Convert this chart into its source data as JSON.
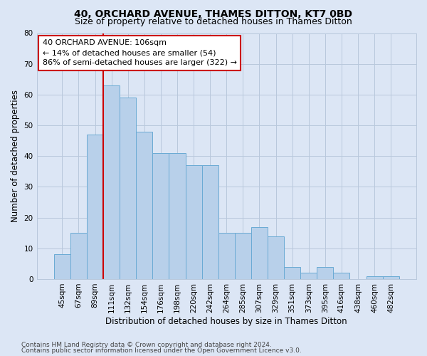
{
  "title": "40, ORCHARD AVENUE, THAMES DITTON, KT7 0BD",
  "subtitle": "Size of property relative to detached houses in Thames Ditton",
  "xlabel": "Distribution of detached houses by size in Thames Ditton",
  "ylabel": "Number of detached properties",
  "bar_labels": [
    "45sqm",
    "67sqm",
    "89sqm",
    "111sqm",
    "132sqm",
    "154sqm",
    "176sqm",
    "198sqm",
    "220sqm",
    "242sqm",
    "264sqm",
    "285sqm",
    "307sqm",
    "329sqm",
    "351sqm",
    "373sqm",
    "395sqm",
    "416sqm",
    "438sqm",
    "460sqm",
    "482sqm"
  ],
  "bar_values": [
    8,
    15,
    47,
    63,
    59,
    48,
    41,
    41,
    37,
    37,
    15,
    15,
    17,
    14,
    4,
    2,
    4,
    2,
    0,
    1,
    1
  ],
  "bar_color": "#b8d0ea",
  "bar_edge_color": "#6aaad4",
  "vline_color": "#cc0000",
  "vline_x_index": 2.5,
  "ylim": [
    0,
    80
  ],
  "yticks": [
    0,
    10,
    20,
    30,
    40,
    50,
    60,
    70,
    80
  ],
  "annotation_line1": "40 ORCHARD AVENUE: 106sqm",
  "annotation_line2": "← 14% of detached houses are smaller (54)",
  "annotation_line3": "86% of semi-detached houses are larger (322) →",
  "footer_line1": "Contains HM Land Registry data © Crown copyright and database right 2024.",
  "footer_line2": "Contains public sector information licensed under the Open Government Licence v3.0.",
  "fig_bg_color": "#dce6f5",
  "plot_bg_color": "#dce6f5",
  "grid_color": "#b8c8dc",
  "title_fontsize": 10,
  "subtitle_fontsize": 9,
  "axis_label_fontsize": 8.5,
  "tick_fontsize": 7.5,
  "annotation_fontsize": 8,
  "footer_fontsize": 6.5
}
